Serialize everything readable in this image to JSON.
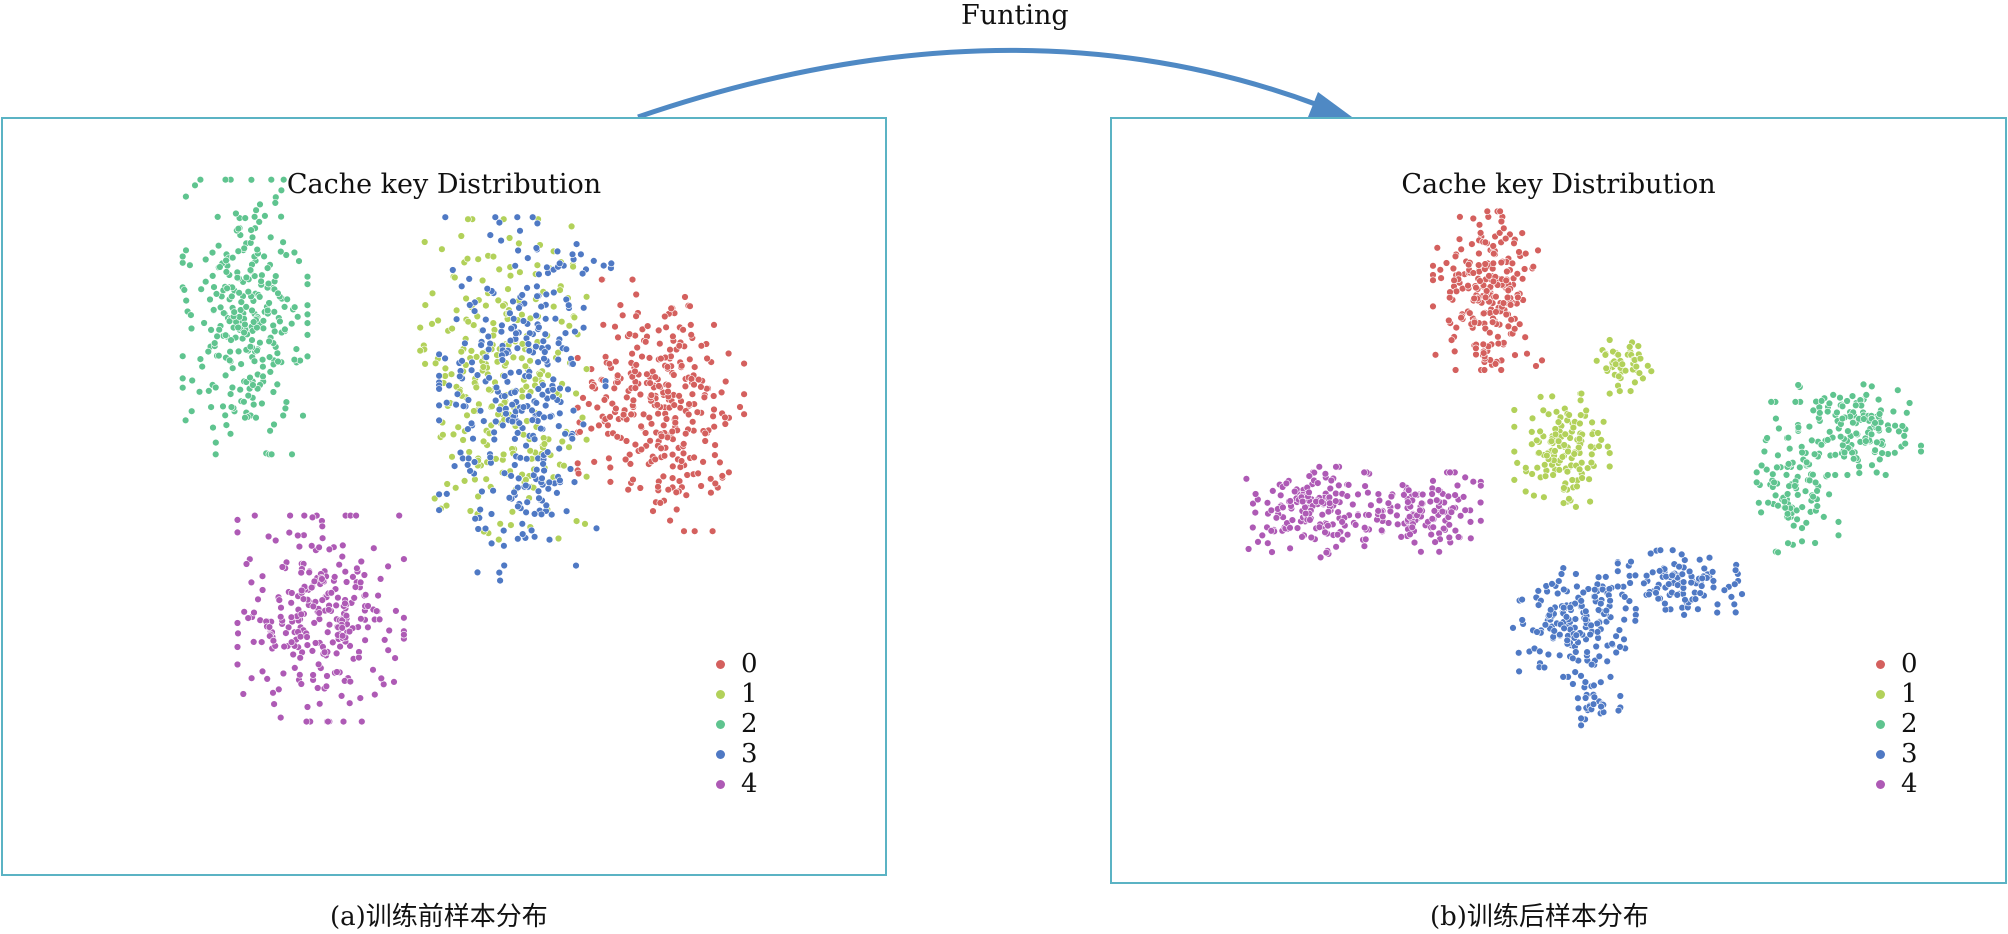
{
  "arrow": {
    "label": "Funting",
    "color": "#4f89c4"
  },
  "colors": {
    "0": "#d4605e",
    "1": "#b2d15a",
    "2": "#5fc48f",
    "3": "#4f79c4",
    "4": "#ae5ab5"
  },
  "panels": [
    {
      "id": "a",
      "title": "Cache key Distribution",
      "caption": "(a)训练前样本分布",
      "legend": [
        {
          "label": "0",
          "cls": "0"
        },
        {
          "label": "1",
          "cls": "1"
        },
        {
          "label": "2",
          "cls": "2"
        },
        {
          "label": "3",
          "cls": "3"
        },
        {
          "label": "4",
          "cls": "4"
        }
      ]
    },
    {
      "id": "b",
      "title": "Cache key Distribution",
      "caption": "(b)训练后样本分布",
      "legend": [
        {
          "label": "0",
          "cls": "0"
        },
        {
          "label": "1",
          "cls": "1"
        },
        {
          "label": "2",
          "cls": "2"
        },
        {
          "label": "3",
          "cls": "3"
        },
        {
          "label": "4",
          "cls": "4"
        }
      ]
    }
  ],
  "chart_data": [
    {
      "type": "scatter",
      "title": "Cache key Distribution",
      "caption": "(a)训练前样本分布",
      "xlabel": "",
      "ylabel": "",
      "grid": false,
      "legend_position": "bottom-right",
      "series": [
        {
          "name": "0",
          "clusters": [
            {
              "cx": 0.83,
              "cy": 0.32,
              "sx": 0.06,
              "sy": 0.11,
              "n": 320
            }
          ]
        },
        {
          "name": "1",
          "clusters": [
            {
              "cx": 0.58,
              "cy": 0.27,
              "sx": 0.06,
              "sy": 0.14,
              "n": 280
            },
            {
              "cx": 0.7,
              "cy": 0.06,
              "sx": 0.03,
              "sy": 0.01,
              "n": 4
            }
          ]
        },
        {
          "name": "2",
          "clusters": [
            {
              "cx": 0.17,
              "cy": 0.15,
              "sx": 0.045,
              "sy": 0.12,
              "n": 300
            }
          ]
        },
        {
          "name": "3",
          "clusters": [
            {
              "cx": 0.61,
              "cy": 0.31,
              "sx": 0.06,
              "sy": 0.16,
              "n": 320
            },
            {
              "cx": 0.71,
              "cy": 0.05,
              "sx": 0.025,
              "sy": 0.01,
              "n": 10
            }
          ]
        },
        {
          "name": "4",
          "clusters": [
            {
              "cx": 0.29,
              "cy": 0.73,
              "sx": 0.06,
              "sy": 0.09,
              "n": 280
            }
          ]
        }
      ]
    },
    {
      "type": "scatter",
      "title": "Cache key Distribution",
      "caption": "(b)训练后样本分布",
      "xlabel": "",
      "ylabel": "",
      "grid": false,
      "legend_position": "bottom-right",
      "series": [
        {
          "name": "0",
          "clusters": [
            {
              "cx": 0.38,
              "cy": 0.11,
              "sx": 0.04,
              "sy": 0.07,
              "n": 240
            }
          ]
        },
        {
          "name": "1",
          "clusters": [
            {
              "cx": 0.5,
              "cy": 0.42,
              "sx": 0.035,
              "sy": 0.05,
              "n": 140
            },
            {
              "cx": 0.6,
              "cy": 0.25,
              "sx": 0.02,
              "sy": 0.025,
              "n": 50
            }
          ]
        },
        {
          "name": "2",
          "clusters": [
            {
              "cx": 0.88,
              "cy": 0.48,
              "sx": 0.03,
              "sy": 0.07,
              "n": 110
            },
            {
              "cx": 0.98,
              "cy": 0.38,
              "sx": 0.045,
              "sy": 0.04,
              "n": 140
            }
          ]
        },
        {
          "name": "3",
          "clusters": [
            {
              "cx": 0.52,
              "cy": 0.75,
              "sx": 0.045,
              "sy": 0.05,
              "n": 180
            },
            {
              "cx": 0.7,
              "cy": 0.68,
              "sx": 0.05,
              "sy": 0.03,
              "n": 110
            },
            {
              "cx": 0.55,
              "cy": 0.91,
              "sx": 0.02,
              "sy": 0.02,
              "n": 30
            }
          ]
        },
        {
          "name": "4",
          "clusters": [
            {
              "cx": 0.09,
              "cy": 0.54,
              "sx": 0.045,
              "sy": 0.04,
              "n": 160
            },
            {
              "cx": 0.27,
              "cy": 0.54,
              "sx": 0.045,
              "sy": 0.035,
              "n": 140
            }
          ]
        }
      ]
    }
  ]
}
